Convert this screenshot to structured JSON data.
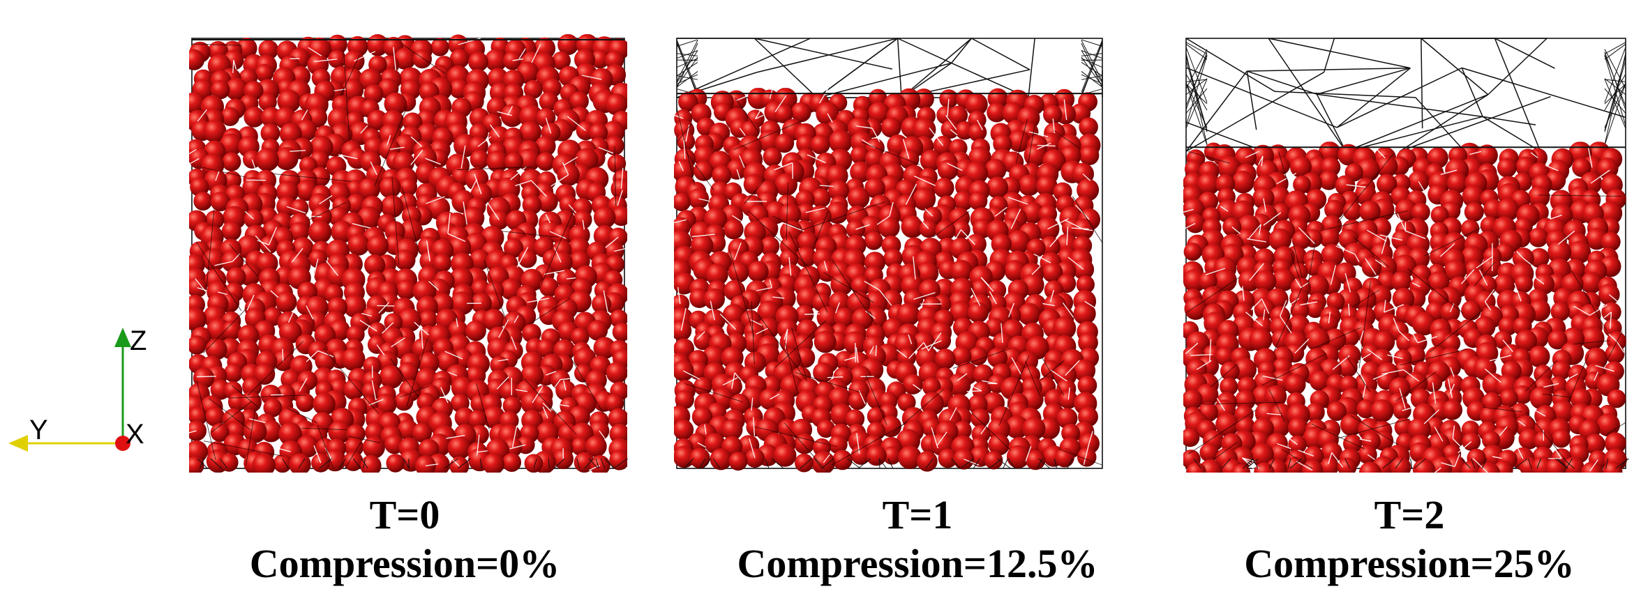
{
  "axes": {
    "z_label": "Z",
    "y_label": "Y",
    "x_label": "X",
    "z_color": "#1a9a1a",
    "y_color": "#e0d000",
    "x_color": "#e01010"
  },
  "panels": [
    {
      "time_label": "T=0",
      "compression_label": "Compression=0%",
      "compression": 0.0
    },
    {
      "time_label": "T=1",
      "compression_label": "Compression=12.5%",
      "compression": 0.125
    },
    {
      "time_label": "T=2",
      "compression_label": "Compression=25%",
      "compression": 0.25
    }
  ],
  "colors": {
    "particle": "#d01010",
    "particle_highlight": "#ff6a5a",
    "particle_shadow": "#6e0000",
    "mesh": "#111111",
    "contact": "#ffffff"
  }
}
